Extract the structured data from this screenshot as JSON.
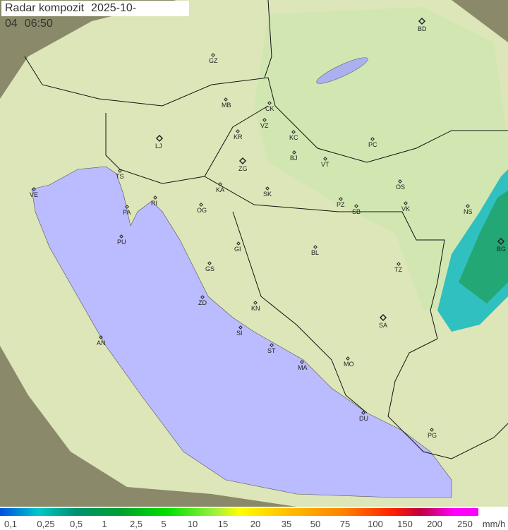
{
  "header": {
    "title": "Radar kompozit",
    "date": "2025-10-04",
    "time": "06:50"
  },
  "legend": {
    "unit": "mm/h",
    "ticks": [
      "0,1",
      "0,25",
      "0,5",
      "1",
      "2,5",
      "5",
      "10",
      "15",
      "20",
      "35",
      "50",
      "75",
      "100",
      "150",
      "200",
      "250"
    ],
    "colors": [
      "#0050e0",
      "#00c8c8",
      "#009070",
      "#00a030",
      "#00e000",
      "#ffff00",
      "#ff8000",
      "#ff2000",
      "#ff00ff"
    ]
  },
  "map": {
    "colors": {
      "sea": "#bbbbff",
      "coverage": "#d8e8b0",
      "outside": "#8a8a6a",
      "rain_light": "#20c0c0",
      "rain_mid": "#20a060"
    },
    "cities": [
      {
        "code": "BD",
        "capital": true
      },
      {
        "code": "GZ"
      },
      {
        "code": "MB"
      },
      {
        "code": "CK"
      },
      {
        "code": "VZ"
      },
      {
        "code": "KR"
      },
      {
        "code": "KC"
      },
      {
        "code": "LJ",
        "capital": true
      },
      {
        "code": "PC"
      },
      {
        "code": "BJ"
      },
      {
        "code": "VT"
      },
      {
        "code": "ZG",
        "capital": true
      },
      {
        "code": "TS"
      },
      {
        "code": "VE"
      },
      {
        "code": "KA"
      },
      {
        "code": "SK"
      },
      {
        "code": "OS"
      },
      {
        "code": "RI"
      },
      {
        "code": "PA"
      },
      {
        "code": "OG"
      },
      {
        "code": "PZ"
      },
      {
        "code": "SB"
      },
      {
        "code": "VK"
      },
      {
        "code": "NS"
      },
      {
        "code": "PU"
      },
      {
        "code": "BG",
        "capital": true
      },
      {
        "code": "GI"
      },
      {
        "code": "BL"
      },
      {
        "code": "GS"
      },
      {
        "code": "TZ"
      },
      {
        "code": "ZD"
      },
      {
        "code": "KN"
      },
      {
        "code": "SA",
        "capital": true
      },
      {
        "code": "SI"
      },
      {
        "code": "AN"
      },
      {
        "code": "ST"
      },
      {
        "code": "MA"
      },
      {
        "code": "MO"
      },
      {
        "code": "DU"
      },
      {
        "code": "PG"
      }
    ]
  }
}
